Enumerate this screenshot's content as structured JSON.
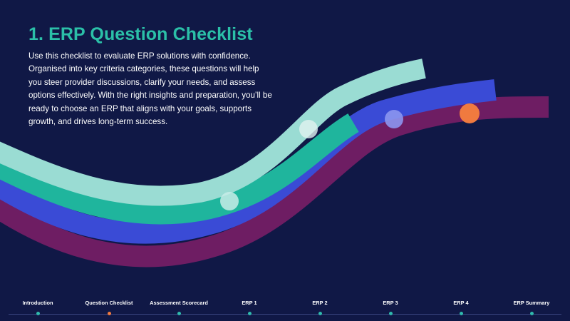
{
  "header": {
    "title": "1. ERP Question Checklist",
    "description": "Use this checklist to evaluate ERP solutions with confidence. Organised into key criteria categories, these questions will help you steer provider discussions, clarify your needs, and assess options effectively. With the right insights and preparation, you’ll be ready to choose an ERP that aligns with your goals, supports growth, and drives long-term success."
  },
  "timeline": {
    "steps": [
      {
        "label": "Introduction",
        "active": false
      },
      {
        "label": "Question Checklist",
        "active": true
      },
      {
        "label": "Assessment Scorecard",
        "active": false
      },
      {
        "label": "ERP 1",
        "active": false
      },
      {
        "label": "ERP 2",
        "active": false
      },
      {
        "label": "ERP 3",
        "active": false
      },
      {
        "label": "ERP 4",
        "active": false
      },
      {
        "label": "ERP Summary",
        "active": false
      }
    ]
  },
  "colors": {
    "background": "#101846",
    "title": "#2bc0a8",
    "ribbon_mint": "#9adcd3",
    "ribbon_teal": "#1fb59d",
    "ribbon_blue": "#3a4bd6",
    "ribbon_purple": "#6e1d63",
    "dot_active": "#f07a3f",
    "dot_inactive": "#2fb9ad"
  }
}
